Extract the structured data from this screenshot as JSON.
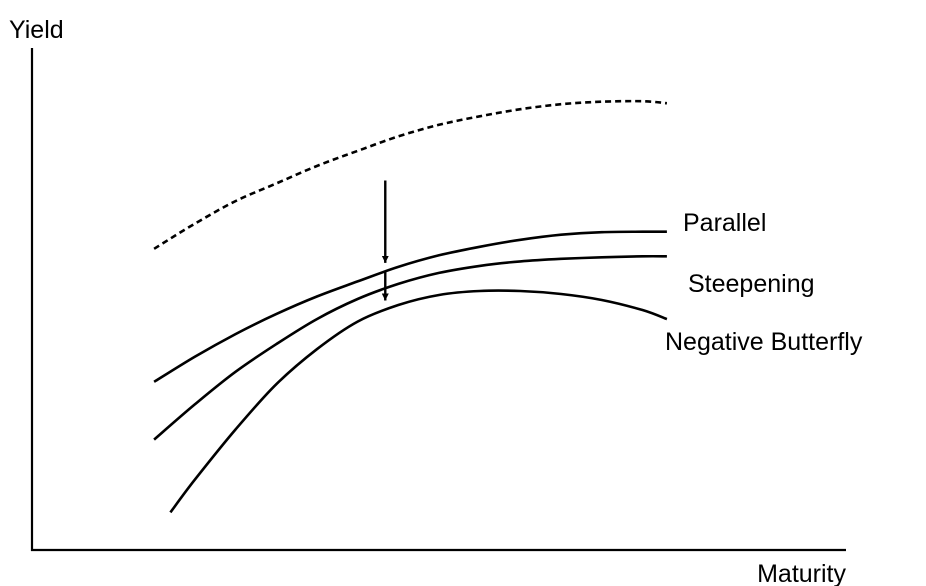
{
  "chart_data": {
    "type": "line",
    "title": "",
    "xlabel": "Maturity",
    "ylabel": "Yield",
    "xlim": [
      0,
      100
    ],
    "ylim": [
      0,
      100
    ],
    "grid": false,
    "series": [
      {
        "style": "dashed",
        "x": [
          15,
          20,
          25,
          30,
          35,
          40,
          45,
          50,
          55,
          60,
          65,
          70,
          75,
          78
        ],
        "y": [
          60,
          65,
          69.5,
          73,
          76.5,
          79.5,
          82.4,
          84.7,
          86.4,
          87.8,
          88.8,
          89.3,
          89.4,
          89
        ]
      },
      {
        "name": "Parallel",
        "style": "solid",
        "x": [
          15,
          20,
          25,
          30,
          35,
          40,
          45,
          50,
          55,
          60,
          65,
          70,
          75,
          78
        ],
        "y": [
          33.5,
          38.5,
          43,
          47,
          50.5,
          53.5,
          56.4,
          58.7,
          60.4,
          61.8,
          62.8,
          63.3,
          63.4,
          63.4
        ]
      },
      {
        "name": "Steepening",
        "style": "solid",
        "x": [
          15,
          20,
          25,
          30,
          35,
          40,
          45,
          50,
          55,
          60,
          65,
          70,
          75,
          78
        ],
        "y": [
          22,
          29,
          35.5,
          41,
          46,
          50,
          53,
          55.2,
          56.6,
          57.5,
          58,
          58.3,
          58.5,
          58.5
        ]
      },
      {
        "name": "Negative Butterfly",
        "style": "solid",
        "x": [
          17,
          20,
          25,
          30,
          35,
          40,
          45,
          50,
          55,
          60,
          65,
          70,
          75,
          78
        ],
        "y": [
          7.5,
          14,
          24,
          33,
          40,
          45.5,
          48.8,
          50.8,
          51.6,
          51.6,
          51,
          49.8,
          47.8,
          46
        ]
      }
    ],
    "annotations": [
      {
        "type": "arrow",
        "from": {
          "x": 43.4,
          "y": 73.6
        },
        "to": {
          "x": 43.4,
          "y": 57.2
        }
      },
      {
        "type": "arrow",
        "from": {
          "x": 43.4,
          "y": 55.5
        },
        "to": {
          "x": 43.4,
          "y": 49.7
        }
      }
    ]
  }
}
